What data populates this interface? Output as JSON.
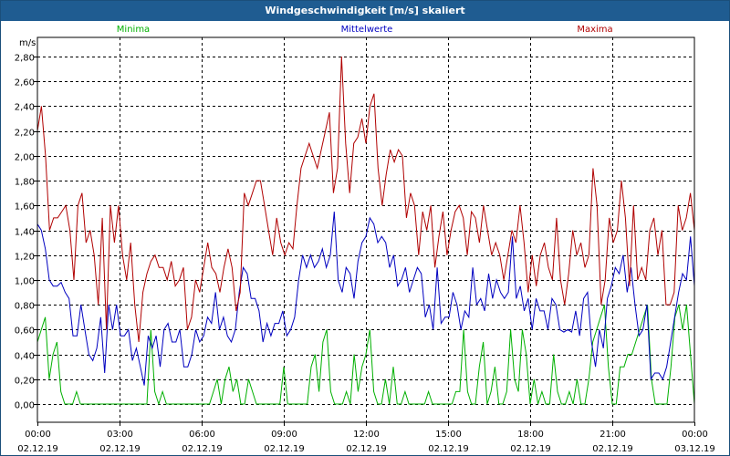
{
  "window": {
    "title": "Windgeschwindigkeit [m/s] skaliert"
  },
  "colors": {
    "minima": "#00b000",
    "mittelwerte": "#0000c0",
    "maxima": "#b00000",
    "grid": "#000000",
    "titlebar": "#1f5c91"
  },
  "chart_data": {
    "type": "line",
    "title": "Windgeschwindigkeit [m/s] skaliert",
    "ylabel": "m/s",
    "xlabel": "",
    "ylim": [
      0,
      2.8
    ],
    "xlim": [
      0,
      24
    ],
    "grid": true,
    "legend_position": "top",
    "yticks": [
      {
        "v": 0.0,
        "label": "0,00"
      },
      {
        "v": 0.2,
        "label": "0,20"
      },
      {
        "v": 0.4,
        "label": "0,40"
      },
      {
        "v": 0.6,
        "label": "0,60"
      },
      {
        "v": 0.8,
        "label": "0,80"
      },
      {
        "v": 1.0,
        "label": "1,00"
      },
      {
        "v": 1.2,
        "label": "1,20"
      },
      {
        "v": 1.4,
        "label": "1,40"
      },
      {
        "v": 1.6,
        "label": "1,60"
      },
      {
        "v": 1.8,
        "label": "1,80"
      },
      {
        "v": 2.0,
        "label": "2,00"
      },
      {
        "v": 2.2,
        "label": "2,20"
      },
      {
        "v": 2.4,
        "label": "2,40"
      },
      {
        "v": 2.6,
        "label": "2,60"
      },
      {
        "v": 2.8,
        "label": "2,80"
      }
    ],
    "xticks": [
      {
        "v": 0,
        "time": "00:00",
        "date": "02.12.19"
      },
      {
        "v": 3,
        "time": "03:00",
        "date": "02.12.19"
      },
      {
        "v": 6,
        "time": "06:00",
        "date": "02.12.19"
      },
      {
        "v": 9,
        "time": "09:00",
        "date": "02.12.19"
      },
      {
        "v": 12,
        "time": "12:00",
        "date": "02.12.19"
      },
      {
        "v": 15,
        "time": "15:00",
        "date": "02.12.19"
      },
      {
        "v": 18,
        "time": "18:00",
        "date": "02.12.19"
      },
      {
        "v": 21,
        "time": "21:00",
        "date": "02.12.19"
      },
      {
        "v": 24,
        "time": "00:00",
        "date": "03.12.19"
      }
    ],
    "x_step_hours": 0.1667,
    "series": [
      {
        "name": "Minima",
        "color": "#00b000",
        "values": [
          0.5,
          0.6,
          0.7,
          0.2,
          0.4,
          0.5,
          0.1,
          0,
          0,
          0,
          0.1,
          0,
          0,
          0,
          0,
          0,
          0,
          0,
          0,
          0,
          0,
          0,
          0,
          0,
          0,
          0,
          0,
          0,
          0,
          0.6,
          0.1,
          0,
          0.1,
          0,
          0,
          0,
          0,
          0,
          0,
          0,
          0,
          0,
          0,
          0,
          0,
          0.1,
          0.2,
          0,
          0.2,
          0.3,
          0.1,
          0.2,
          0,
          0,
          0.2,
          0.1,
          0,
          0,
          0,
          0,
          0,
          0,
          0,
          0.3,
          0,
          0,
          0,
          0,
          0,
          0,
          0.3,
          0.4,
          0.1,
          0.5,
          0.6,
          0.1,
          0,
          0,
          0,
          0.1,
          0,
          0.4,
          0.1,
          0.3,
          0.4,
          0.6,
          0.1,
          0,
          0,
          0.2,
          0,
          0.3,
          0,
          0,
          0.1,
          0,
          0,
          0,
          0,
          0,
          0.1,
          0,
          0,
          0,
          0,
          0,
          0,
          0.1,
          0.1,
          0.6,
          0.1,
          0,
          0,
          0.3,
          0.5,
          0,
          0.1,
          0.3,
          0,
          0,
          0.1,
          0.6,
          0.2,
          0.1,
          0.6,
          0.4,
          0,
          0.2,
          0,
          0.1,
          0,
          0,
          0.4,
          0.1,
          0,
          0,
          0.1,
          0,
          0.2,
          0,
          0,
          0.2,
          0.5,
          0.6,
          0.7,
          0.8,
          0.3,
          0,
          0,
          0.3,
          0.3,
          0.4,
          0.4,
          0.5,
          0.6,
          0.7,
          0.8,
          0.2,
          0,
          0,
          0,
          0,
          0.3,
          0.7,
          0.8,
          0.6,
          0.8,
          0.4,
          0
        ]
      },
      {
        "name": "Mittelwerte",
        "color": "#0000c0",
        "values": [
          1.45,
          1.4,
          1.25,
          1,
          0.95,
          0.95,
          0.98,
          0.9,
          0.85,
          0.55,
          0.55,
          0.8,
          0.6,
          0.4,
          0.35,
          0.45,
          0.7,
          0.25,
          0.8,
          0.6,
          0.8,
          0.55,
          0.55,
          0.6,
          0.35,
          0.45,
          0.3,
          0.15,
          0.55,
          0.45,
          0.55,
          0.3,
          0.6,
          0.65,
          0.5,
          0.5,
          0.6,
          0.3,
          0.3,
          0.4,
          0.6,
          0.5,
          0.55,
          0.7,
          0.65,
          0.9,
          0.6,
          0.7,
          0.55,
          0.5,
          0.6,
          0.9,
          1.1,
          1.05,
          0.85,
          0.85,
          0.75,
          0.5,
          0.65,
          0.55,
          0.65,
          0.65,
          0.75,
          0.55,
          0.6,
          0.7,
          1,
          1.2,
          1.1,
          1.2,
          1.1,
          1.15,
          1.25,
          1.1,
          1.2,
          1.55,
          1,
          0.9,
          1.1,
          1.05,
          0.85,
          1.15,
          1.3,
          1.35,
          1.5,
          1.45,
          1.3,
          1.35,
          1.3,
          1.1,
          1.2,
          0.95,
          1,
          1.1,
          0.9,
          1,
          1.1,
          1.05,
          0.7,
          0.8,
          0.6,
          1.1,
          0.65,
          0.7,
          0.7,
          0.9,
          0.8,
          0.6,
          0.75,
          0.7,
          1.1,
          0.8,
          0.85,
          0.75,
          1.05,
          0.85,
          1,
          0.9,
          0.85,
          0.9,
          1.35,
          0.85,
          0.95,
          0.75,
          0.85,
          0.6,
          0.85,
          0.75,
          0.75,
          0.6,
          0.85,
          0.8,
          0.6,
          0.58,
          0.6,
          0.58,
          0.75,
          0.55,
          0.85,
          0.9,
          0.5,
          0.3,
          0.6,
          0.45,
          0.85,
          0.95,
          1.1,
          1.05,
          1.2,
          0.9,
          1.1,
          0.8,
          0.55,
          0.6,
          0.8,
          0.2,
          0.25,
          0.25,
          0.2,
          0.3,
          0.5,
          0.7,
          0.9,
          1.05,
          1,
          1.35,
          0.95
        ]
      },
      {
        "name": "Maxima",
        "color": "#b00000",
        "values": [
          2.2,
          2.4,
          2,
          1.4,
          1.5,
          1.5,
          1.55,
          1.6,
          1.4,
          1,
          1.6,
          1.7,
          1.3,
          1.4,
          1.2,
          0.8,
          1.5,
          0.6,
          1.6,
          1.3,
          1.6,
          1.2,
          1,
          1.3,
          0.8,
          0.5,
          0.9,
          1.05,
          1.15,
          1.2,
          1.1,
          1.1,
          1,
          1.15,
          0.95,
          1,
          1.1,
          0.6,
          0.7,
          1,
          0.9,
          1.1,
          1.3,
          1.1,
          1.05,
          0.9,
          1.1,
          1.25,
          1.1,
          0.75,
          0.9,
          1.7,
          1.6,
          1.7,
          1.8,
          1.8,
          1.6,
          1.4,
          1.2,
          1.5,
          1.3,
          1.2,
          1.3,
          1.25,
          1.6,
          1.9,
          2,
          2.1,
          2,
          1.9,
          2.05,
          2.2,
          2.35,
          1.7,
          1.9,
          2.8,
          2.1,
          1.7,
          2.1,
          2.15,
          2.3,
          2.1,
          2.4,
          2.5,
          1.9,
          1.6,
          1.85,
          2.05,
          1.95,
          2.05,
          2,
          1.5,
          1.7,
          1.6,
          1.2,
          1.55,
          1.4,
          1.6,
          1.1,
          1.35,
          1.55,
          1.2,
          1.4,
          1.55,
          1.6,
          1.5,
          1.2,
          1.55,
          1.5,
          1.3,
          1.6,
          1.4,
          1.2,
          1.3,
          1.2,
          1,
          1.2,
          1.4,
          1.3,
          1.6,
          1.3,
          0.9,
          1.2,
          0.95,
          1.2,
          1.3,
          1.1,
          1,
          1.5,
          1,
          0.8,
          1.05,
          1.4,
          1.2,
          1.3,
          1.1,
          1.2,
          1.9,
          1.6,
          0.8,
          1,
          1.5,
          1.3,
          1.4,
          1.8,
          1.5,
          0.95,
          1.6,
          1,
          1.1,
          1,
          1.4,
          1.5,
          1.2,
          1.4,
          0.8,
          0.8,
          0.9,
          1.6,
          1.4,
          1.5,
          1.7,
          1.4
        ]
      }
    ]
  }
}
